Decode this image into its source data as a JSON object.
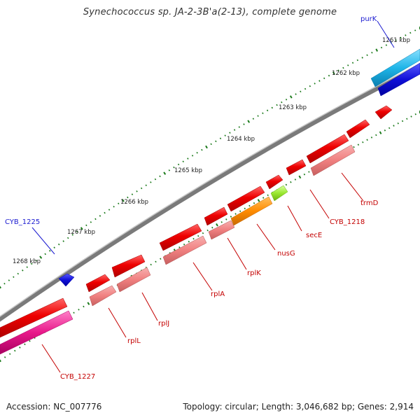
{
  "title": "Synechococcus sp. JA-2-3B'a(2-13), complete genome",
  "footer": {
    "accession": "Accession: NC_007776",
    "summary": "Topology: circular; Length: 3,046,682 bp; Genes: 2,914"
  },
  "ticks": [
    "1261 kbp",
    "1262 kbp",
    "1263 kbp",
    "1264 kbp",
    "1265 kbp",
    "1266 kbp",
    "1267 kbp",
    "1268 kbp"
  ],
  "gene_labels": {
    "purK": "purK",
    "cyb1225": "CYB_1225",
    "trmD": "trmD",
    "cyb1218": "CYB_1218",
    "secE": "secE",
    "nusG": "nusG",
    "rplK": "rplK",
    "rplA": "rplA",
    "rplJ": "rplJ",
    "rplL": "rplL",
    "cyb1227": "CYB_1227"
  },
  "colors": {
    "backbone": "#808080",
    "cds": "#ee0000",
    "gene_feature": "#f08080",
    "purK": "#1fb5e8",
    "blue_feature": "#1010d8",
    "nusG": "#ff8c00",
    "secE": "#9ae830",
    "cyb1227": "#e8188a",
    "tick_mark": "#1a7a1a"
  }
}
